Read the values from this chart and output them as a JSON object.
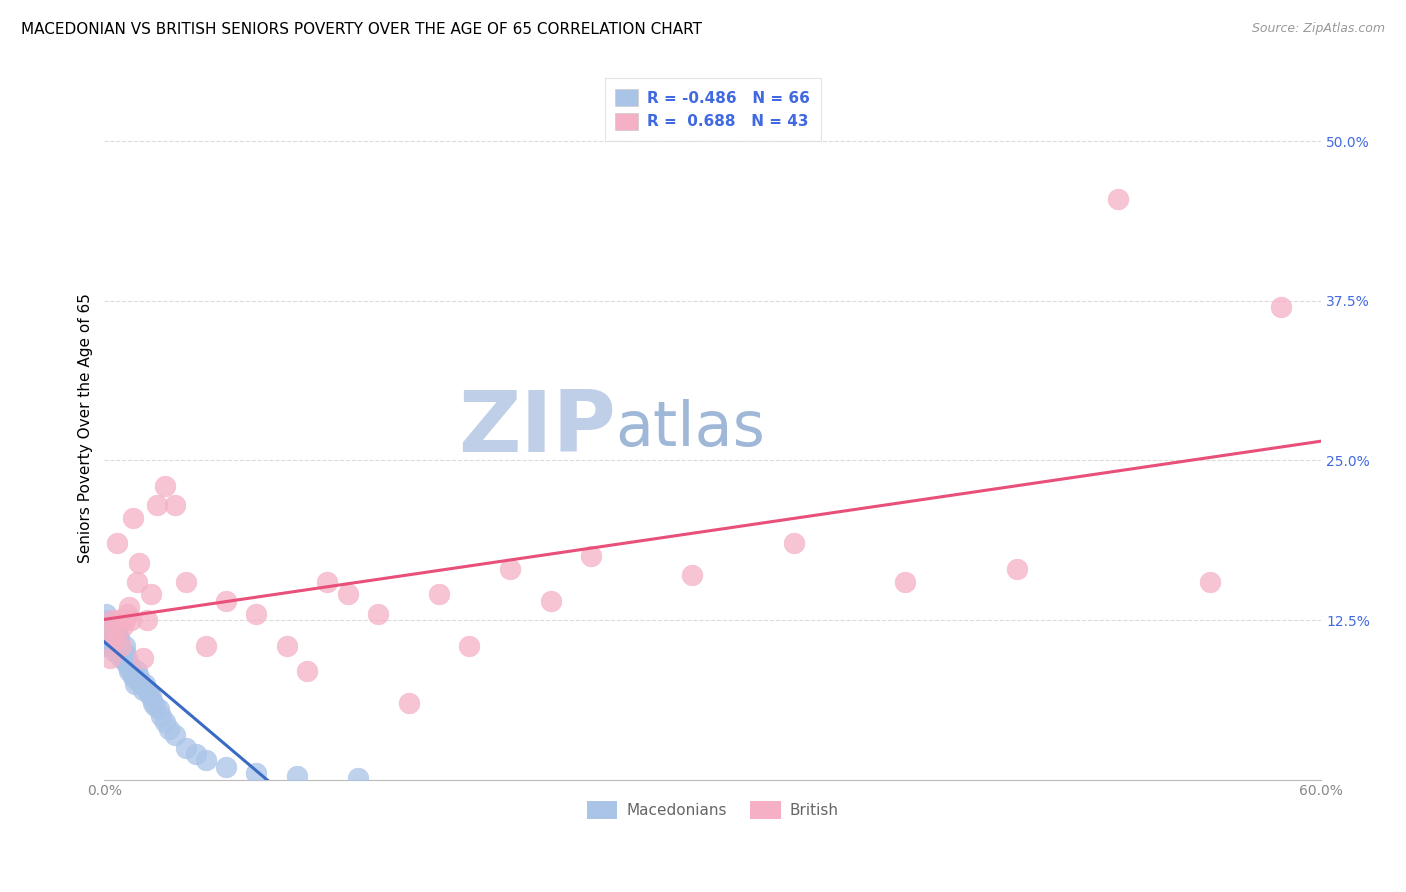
{
  "title": "MACEDONIAN VS BRITISH SENIORS POVERTY OVER THE AGE OF 65 CORRELATION CHART",
  "source": "Source: ZipAtlas.com",
  "ylabel": "Seniors Poverty Over the Age of 65",
  "xlim": [
    0.0,
    0.6
  ],
  "ylim": [
    0.0,
    0.55
  ],
  "ytick_positions": [
    0.0,
    0.125,
    0.25,
    0.375,
    0.5
  ],
  "ytick_labels": [
    "",
    "12.5%",
    "25.0%",
    "37.5%",
    "50.0%"
  ],
  "watermark_zip": "ZIP",
  "watermark_atlas": "atlas",
  "mac_R": -0.486,
  "mac_N": 66,
  "brit_R": 0.688,
  "brit_N": 43,
  "mac_color": "#aac4e8",
  "brit_color": "#f5b0c5",
  "mac_line_color": "#3a6bc4",
  "brit_line_color": "#e8507a",
  "legend_labels": [
    "Macedonians",
    "British"
  ],
  "mac_x": [
    0.001,
    0.001,
    0.001,
    0.002,
    0.002,
    0.002,
    0.002,
    0.002,
    0.003,
    0.003,
    0.003,
    0.003,
    0.003,
    0.004,
    0.004,
    0.004,
    0.004,
    0.005,
    0.005,
    0.005,
    0.005,
    0.006,
    0.006,
    0.006,
    0.007,
    0.007,
    0.007,
    0.008,
    0.008,
    0.009,
    0.009,
    0.01,
    0.01,
    0.01,
    0.011,
    0.011,
    0.012,
    0.012,
    0.013,
    0.013,
    0.014,
    0.015,
    0.015,
    0.016,
    0.016,
    0.017,
    0.018,
    0.019,
    0.02,
    0.021,
    0.022,
    0.023,
    0.024,
    0.025,
    0.027,
    0.028,
    0.03,
    0.032,
    0.035,
    0.04,
    0.045,
    0.05,
    0.06,
    0.075,
    0.095,
    0.125
  ],
  "mac_y": [
    0.12,
    0.13,
    0.105,
    0.115,
    0.12,
    0.125,
    0.11,
    0.105,
    0.11,
    0.115,
    0.108,
    0.112,
    0.118,
    0.105,
    0.11,
    0.115,
    0.108,
    0.1,
    0.11,
    0.115,
    0.12,
    0.105,
    0.11,
    0.115,
    0.1,
    0.108,
    0.112,
    0.095,
    0.1,
    0.095,
    0.1,
    0.095,
    0.1,
    0.105,
    0.09,
    0.095,
    0.085,
    0.09,
    0.085,
    0.088,
    0.08,
    0.075,
    0.08,
    0.085,
    0.078,
    0.08,
    0.075,
    0.07,
    0.075,
    0.07,
    0.068,
    0.065,
    0.06,
    0.058,
    0.055,
    0.05,
    0.045,
    0.04,
    0.035,
    0.025,
    0.02,
    0.015,
    0.01,
    0.005,
    0.003,
    0.001
  ],
  "brit_x": [
    0.002,
    0.003,
    0.004,
    0.005,
    0.006,
    0.007,
    0.008,
    0.009,
    0.01,
    0.011,
    0.012,
    0.013,
    0.014,
    0.016,
    0.017,
    0.019,
    0.021,
    0.023,
    0.026,
    0.03,
    0.035,
    0.04,
    0.05,
    0.06,
    0.075,
    0.09,
    0.11,
    0.135,
    0.165,
    0.2,
    0.24,
    0.29,
    0.34,
    0.395,
    0.45,
    0.5,
    0.545,
    0.58,
    0.1,
    0.12,
    0.15,
    0.18,
    0.22
  ],
  "brit_y": [
    0.115,
    0.095,
    0.125,
    0.11,
    0.185,
    0.125,
    0.105,
    0.12,
    0.125,
    0.13,
    0.135,
    0.125,
    0.205,
    0.155,
    0.17,
    0.095,
    0.125,
    0.145,
    0.215,
    0.23,
    0.215,
    0.155,
    0.105,
    0.14,
    0.13,
    0.105,
    0.155,
    0.13,
    0.145,
    0.165,
    0.175,
    0.16,
    0.185,
    0.155,
    0.165,
    0.455,
    0.155,
    0.37,
    0.085,
    0.145,
    0.06,
    0.105,
    0.14
  ],
  "grid_color": "#cccccc",
  "bg_color": "#ffffff",
  "title_fontsize": 11,
  "axis_label_fontsize": 11,
  "tick_fontsize": 10,
  "zip_color": "#c0cfe8",
  "atlas_color": "#a0b8d8",
  "watermark_fontsize": 62
}
